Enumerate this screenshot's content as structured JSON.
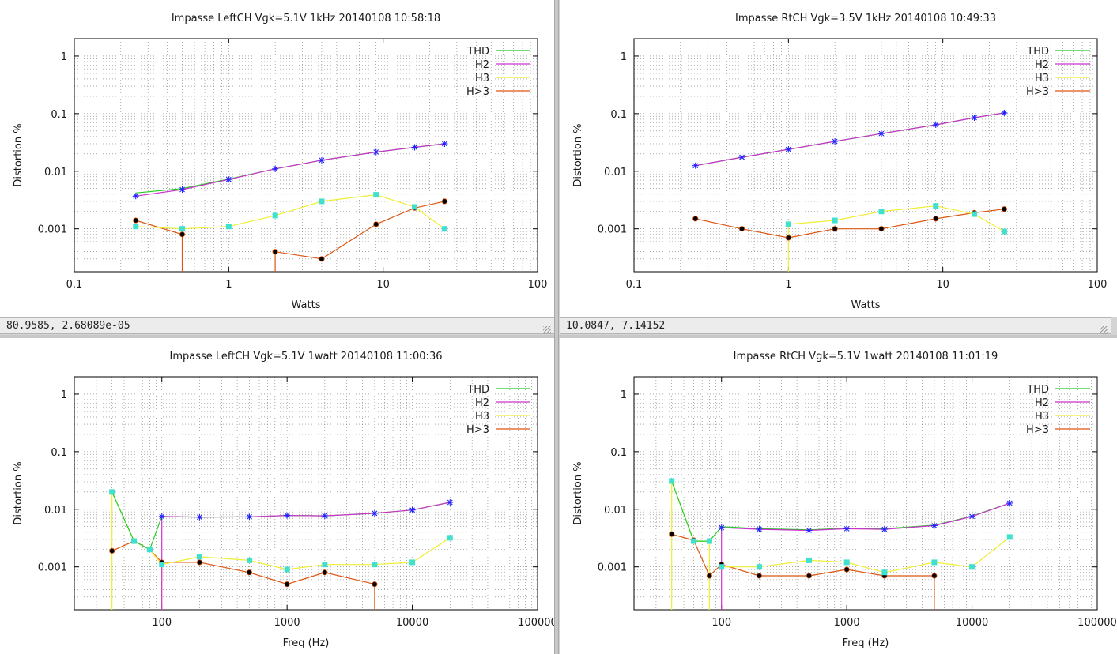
{
  "windows": [
    {
      "status": "80.9585,  2.68089e-05"
    },
    {
      "status": "10.0847,  7.14152"
    },
    {
      "status": ""
    },
    {
      "status": ""
    }
  ],
  "series_colors": {
    "THD": "#22cc22",
    "H2": "#cc33cc",
    "H3": "#eeee33",
    "H>3": "#dd5511"
  },
  "chart_data": [
    {
      "type": "line",
      "title": "Impasse LeftCH Vgk=5.1V 1kHz 20140108 10:58:18",
      "xlabel": "Watts",
      "ylabel": "Distortion %",
      "xscale": "log",
      "yscale": "log",
      "xlim": [
        0.1,
        100
      ],
      "ylim": [
        0.00018,
        2
      ],
      "xticks": [
        0.1,
        1,
        10,
        100
      ],
      "xtick_labels": [
        "0.1",
        "1",
        "10",
        "100"
      ],
      "yticks": [
        0.001,
        0.01,
        0.1,
        1
      ],
      "ytick_labels": [
        "0.001",
        "0.01",
        "0.1",
        "1"
      ],
      "grid": true,
      "legend": "top-right",
      "series": [
        {
          "name": "THD",
          "points": [
            [
              0.25,
              0.0042
            ],
            [
              0.5,
              0.005
            ],
            [
              1,
              0.0073
            ],
            [
              2,
              0.011
            ],
            [
              4,
              0.0155
            ],
            [
              9,
              0.0215
            ],
            [
              16,
              0.026
            ],
            [
              25,
              0.03
            ]
          ]
        },
        {
          "name": "H2",
          "points": [
            [
              0.25,
              0.0037
            ],
            [
              0.5,
              0.0048
            ],
            [
              1,
              0.0072
            ],
            [
              2,
              0.011
            ],
            [
              4,
              0.0155
            ],
            [
              9,
              0.0215
            ],
            [
              16,
              0.026
            ],
            [
              25,
              0.03
            ]
          ]
        },
        {
          "name": "H3",
          "points": [
            [
              0.25,
              0.0011
            ],
            [
              0.5,
              0.001
            ],
            [
              1,
              0.0011
            ],
            [
              2,
              0.0017
            ],
            [
              4,
              0.003
            ],
            [
              9,
              0.0039
            ],
            [
              16,
              0.0024
            ],
            [
              25,
              0.001
            ]
          ]
        },
        {
          "name": "H>3",
          "points": [
            [
              0.25,
              0.0014
            ],
            [
              0.5,
              0.0008
            ],
            [
              0.5,
              0.00018
            ],
            null,
            [
              2,
              0.00018
            ],
            [
              2,
              0.0004
            ],
            [
              4,
              0.0003
            ],
            [
              9,
              0.0012
            ],
            [
              16,
              0.0023
            ],
            [
              25,
              0.003
            ]
          ]
        }
      ]
    },
    {
      "type": "line",
      "title": "Impasse RtCH Vgk=3.5V 1kHz 20140108 10:49:33",
      "xlabel": "Watts",
      "ylabel": "Distortion %",
      "xscale": "log",
      "yscale": "log",
      "xlim": [
        0.1,
        100
      ],
      "ylim": [
        0.00018,
        2
      ],
      "xticks": [
        0.1,
        1,
        10,
        100
      ],
      "xtick_labels": [
        "0.1",
        "1",
        "10",
        "100"
      ],
      "yticks": [
        0.001,
        0.01,
        0.1,
        1
      ],
      "ytick_labels": [
        "0.001",
        "0.01",
        "0.1",
        "1"
      ],
      "grid": true,
      "legend": "top-right",
      "series": [
        {
          "name": "THD",
          "points": [
            [
              0.25,
              0.0125
            ],
            [
              0.5,
              0.0175
            ],
            [
              1,
              0.024
            ],
            [
              2,
              0.033
            ],
            [
              4,
              0.045
            ],
            [
              9,
              0.064
            ],
            [
              16,
              0.085
            ],
            [
              25,
              0.103
            ]
          ]
        },
        {
          "name": "H2",
          "points": [
            [
              0.25,
              0.0125
            ],
            [
              0.5,
              0.0175
            ],
            [
              1,
              0.024
            ],
            [
              2,
              0.033
            ],
            [
              4,
              0.045
            ],
            [
              9,
              0.064
            ],
            [
              16,
              0.085
            ],
            [
              25,
              0.103
            ]
          ]
        },
        {
          "name": "H3",
          "points": [
            [
              1,
              0.00018
            ],
            [
              1,
              0.0012
            ],
            [
              2,
              0.0014
            ],
            [
              4,
              0.002
            ],
            [
              9,
              0.0025
            ],
            [
              16,
              0.0018
            ],
            [
              25,
              0.0009
            ]
          ]
        },
        {
          "name": "H>3",
          "points": [
            [
              0.25,
              0.0015
            ],
            [
              0.5,
              0.001
            ],
            [
              1,
              0.0007
            ],
            [
              2,
              0.001
            ],
            [
              4,
              0.001
            ],
            [
              9,
              0.0015
            ],
            [
              16,
              0.0019
            ],
            [
              25,
              0.0022
            ]
          ]
        }
      ]
    },
    {
      "type": "line",
      "title": "Impasse LeftCH Vgk=5.1V 1watt 20140108 11:00:36",
      "xlabel": "Freq (Hz)",
      "ylabel": "Distortion %",
      "xscale": "log",
      "yscale": "log",
      "xlim": [
        20,
        100000
      ],
      "ylim": [
        0.00018,
        2
      ],
      "xticks": [
        100,
        1000,
        10000,
        100000
      ],
      "xtick_labels": [
        "100",
        "1000",
        "10000",
        "100000"
      ],
      "yticks": [
        0.001,
        0.01,
        0.1,
        1
      ],
      "ytick_labels": [
        "0.001",
        "0.01",
        "0.1",
        "1"
      ],
      "grid": true,
      "legend": "top-right",
      "series": [
        {
          "name": "THD",
          "points": [
            [
              40,
              0.02
            ],
            [
              60,
              0.0028
            ],
            [
              80,
              0.002
            ],
            [
              100,
              0.0075
            ],
            [
              200,
              0.0073
            ],
            [
              500,
              0.0074
            ],
            [
              1000,
              0.0078
            ],
            [
              2000,
              0.0077
            ],
            [
              5000,
              0.0085
            ],
            [
              10000,
              0.0097
            ],
            [
              20000,
              0.0132
            ]
          ]
        },
        {
          "name": "H2",
          "points": [
            [
              100,
              0.00018
            ],
            [
              100,
              0.0075
            ],
            [
              200,
              0.0073
            ],
            [
              500,
              0.0074
            ],
            [
              1000,
              0.0078
            ],
            [
              2000,
              0.0077
            ],
            [
              5000,
              0.0085
            ],
            [
              10000,
              0.0097
            ],
            [
              20000,
              0.0132
            ]
          ]
        },
        {
          "name": "H3",
          "points": [
            [
              40,
              0.00018
            ],
            [
              40,
              0.02
            ],
            [
              60,
              0.0028
            ],
            [
              80,
              0.002
            ],
            [
              100,
              0.0011
            ],
            [
              100,
              0.00018
            ],
            null,
            [
              100,
              0.0011
            ],
            [
              200,
              0.0015
            ],
            [
              500,
              0.0013
            ],
            [
              1000,
              0.0009
            ],
            [
              2000,
              0.0011
            ],
            [
              5000,
              0.0011
            ],
            [
              10000,
              0.0012
            ],
            [
              20000,
              0.0032
            ]
          ]
        },
        {
          "name": "H>3",
          "points": [
            [
              40,
              0.0019
            ],
            [
              60,
              0.0028
            ],
            [
              80,
              0.002
            ],
            [
              100,
              0.0012
            ],
            [
              200,
              0.0012
            ],
            [
              500,
              0.0008
            ],
            [
              1000,
              0.0005
            ],
            [
              2000,
              0.0008
            ],
            [
              5000,
              0.0005
            ],
            [
              5000,
              0.00018
            ]
          ]
        }
      ]
    },
    {
      "type": "line",
      "title": "Impasse RtCH Vgk=5.1V 1watt 20140108 11:01:19",
      "xlabel": "Freq (Hz)",
      "ylabel": "Distortion %",
      "xscale": "log",
      "yscale": "log",
      "xlim": [
        20,
        100000
      ],
      "ylim": [
        0.00018,
        2
      ],
      "xticks": [
        100,
        1000,
        10000,
        100000
      ],
      "xtick_labels": [
        "100",
        "1000",
        "10000",
        "100000"
      ],
      "yticks": [
        0.001,
        0.01,
        0.1,
        1
      ],
      "ytick_labels": [
        "0.001",
        "0.01",
        "0.1",
        "1"
      ],
      "grid": true,
      "legend": "top-right",
      "series": [
        {
          "name": "THD",
          "points": [
            [
              40,
              0.031
            ],
            [
              60,
              0.0028
            ],
            [
              80,
              0.0028
            ],
            [
              100,
              0.005
            ],
            [
              200,
              0.0046
            ],
            [
              500,
              0.0044
            ],
            [
              1000,
              0.0047
            ],
            [
              2000,
              0.0046
            ],
            [
              5000,
              0.0053
            ],
            [
              10000,
              0.0076
            ],
            [
              20000,
              0.0128
            ]
          ]
        },
        {
          "name": "H2",
          "points": [
            [
              100,
              0.00018
            ],
            [
              100,
              0.0048
            ],
            [
              200,
              0.0045
            ],
            [
              500,
              0.0043
            ],
            [
              1000,
              0.0046
            ],
            [
              2000,
              0.0045
            ],
            [
              5000,
              0.0052
            ],
            [
              10000,
              0.0075
            ],
            [
              20000,
              0.0128
            ]
          ]
        },
        {
          "name": "H3",
          "points": [
            [
              40,
              0.00018
            ],
            [
              40,
              0.031
            ],
            [
              60,
              0.0028
            ],
            [
              80,
              0.0028
            ],
            [
              80,
              0.00018
            ],
            null,
            [
              100,
              0.001
            ],
            [
              200,
              0.001
            ],
            [
              500,
              0.0013
            ],
            [
              1000,
              0.0012
            ],
            [
              2000,
              0.0008
            ],
            [
              5000,
              0.0012
            ],
            [
              10000,
              0.001
            ],
            [
              20000,
              0.0033
            ]
          ]
        },
        {
          "name": "H>3",
          "points": [
            [
              40,
              0.0037
            ],
            [
              60,
              0.0029
            ],
            [
              80,
              0.0007
            ],
            [
              100,
              0.0011
            ],
            [
              200,
              0.0007
            ],
            [
              500,
              0.0007
            ],
            [
              1000,
              0.0009
            ],
            [
              2000,
              0.0007
            ],
            [
              5000,
              0.0007
            ],
            [
              5000,
              0.00018
            ]
          ]
        }
      ]
    }
  ]
}
